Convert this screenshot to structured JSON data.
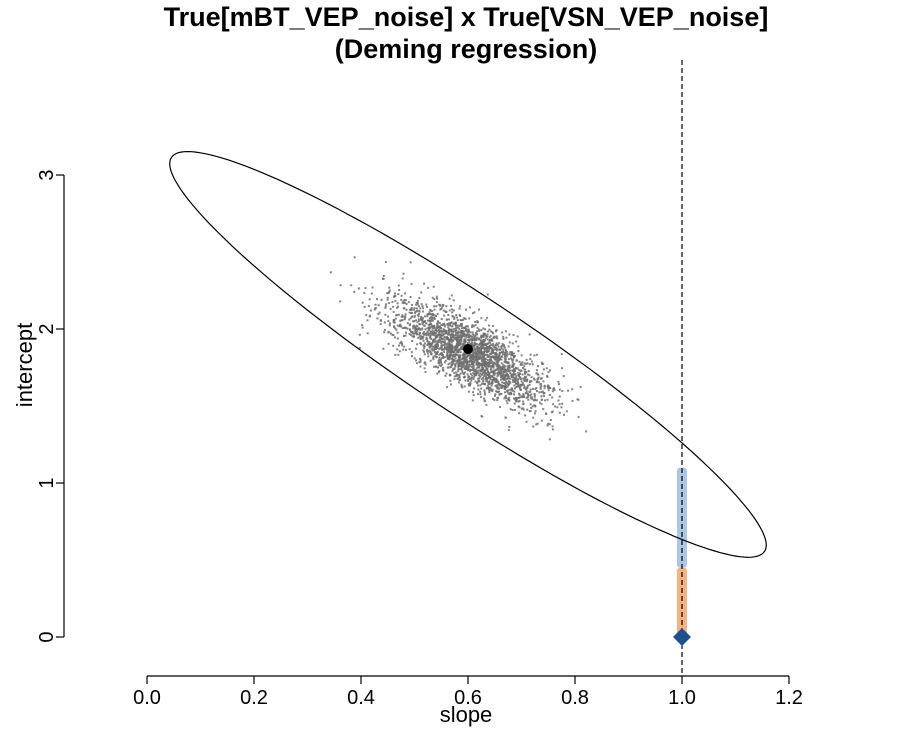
{
  "chart_data": {
    "type": "scatter",
    "title": "True[mBT_VEP_noise] x True[VSN_VEP_noise]",
    "subtitle": "(Deming regression)",
    "xlabel": "slope",
    "ylabel": "intercept",
    "x_ticks": [
      "0.0",
      "0.2",
      "0.4",
      "0.6",
      "0.8",
      "1.0",
      "1.2"
    ],
    "y_ticks": [
      "0",
      "1",
      "2",
      "3"
    ],
    "xlim": [
      0.0,
      1.2
    ],
    "ylim": [
      0,
      3
    ],
    "grid": false,
    "reference_line": {
      "x": 1.0,
      "style": "dashed"
    },
    "point_cloud": {
      "center_slope": 0.6,
      "center_intercept": 1.85,
      "count": 2400,
      "color": "#6e6e6e"
    },
    "mean_point": {
      "slope": 0.6,
      "intercept": 1.87,
      "color": "#000000"
    },
    "confidence_ellipse": {
      "center_slope": 0.6,
      "center_intercept": 1.835,
      "color": "#000000"
    },
    "identity_marker": {
      "slope": 1.0,
      "intercept": 0.0,
      "shape": "diamond",
      "color": "#1f4f8f"
    },
    "interval_bars": [
      {
        "slope": 1.0,
        "from": 0.0,
        "to": 0.45,
        "color": "#f4a46a"
      },
      {
        "slope": 1.0,
        "from": 0.45,
        "to": 1.1,
        "color": "#9dbde0"
      }
    ],
    "colors": {
      "points": "#6e6e6e",
      "ellipse": "#000000",
      "diamond": "#1f4f8f",
      "orange_band": "#f4a46a",
      "blue_band": "#9dbde0"
    }
  }
}
